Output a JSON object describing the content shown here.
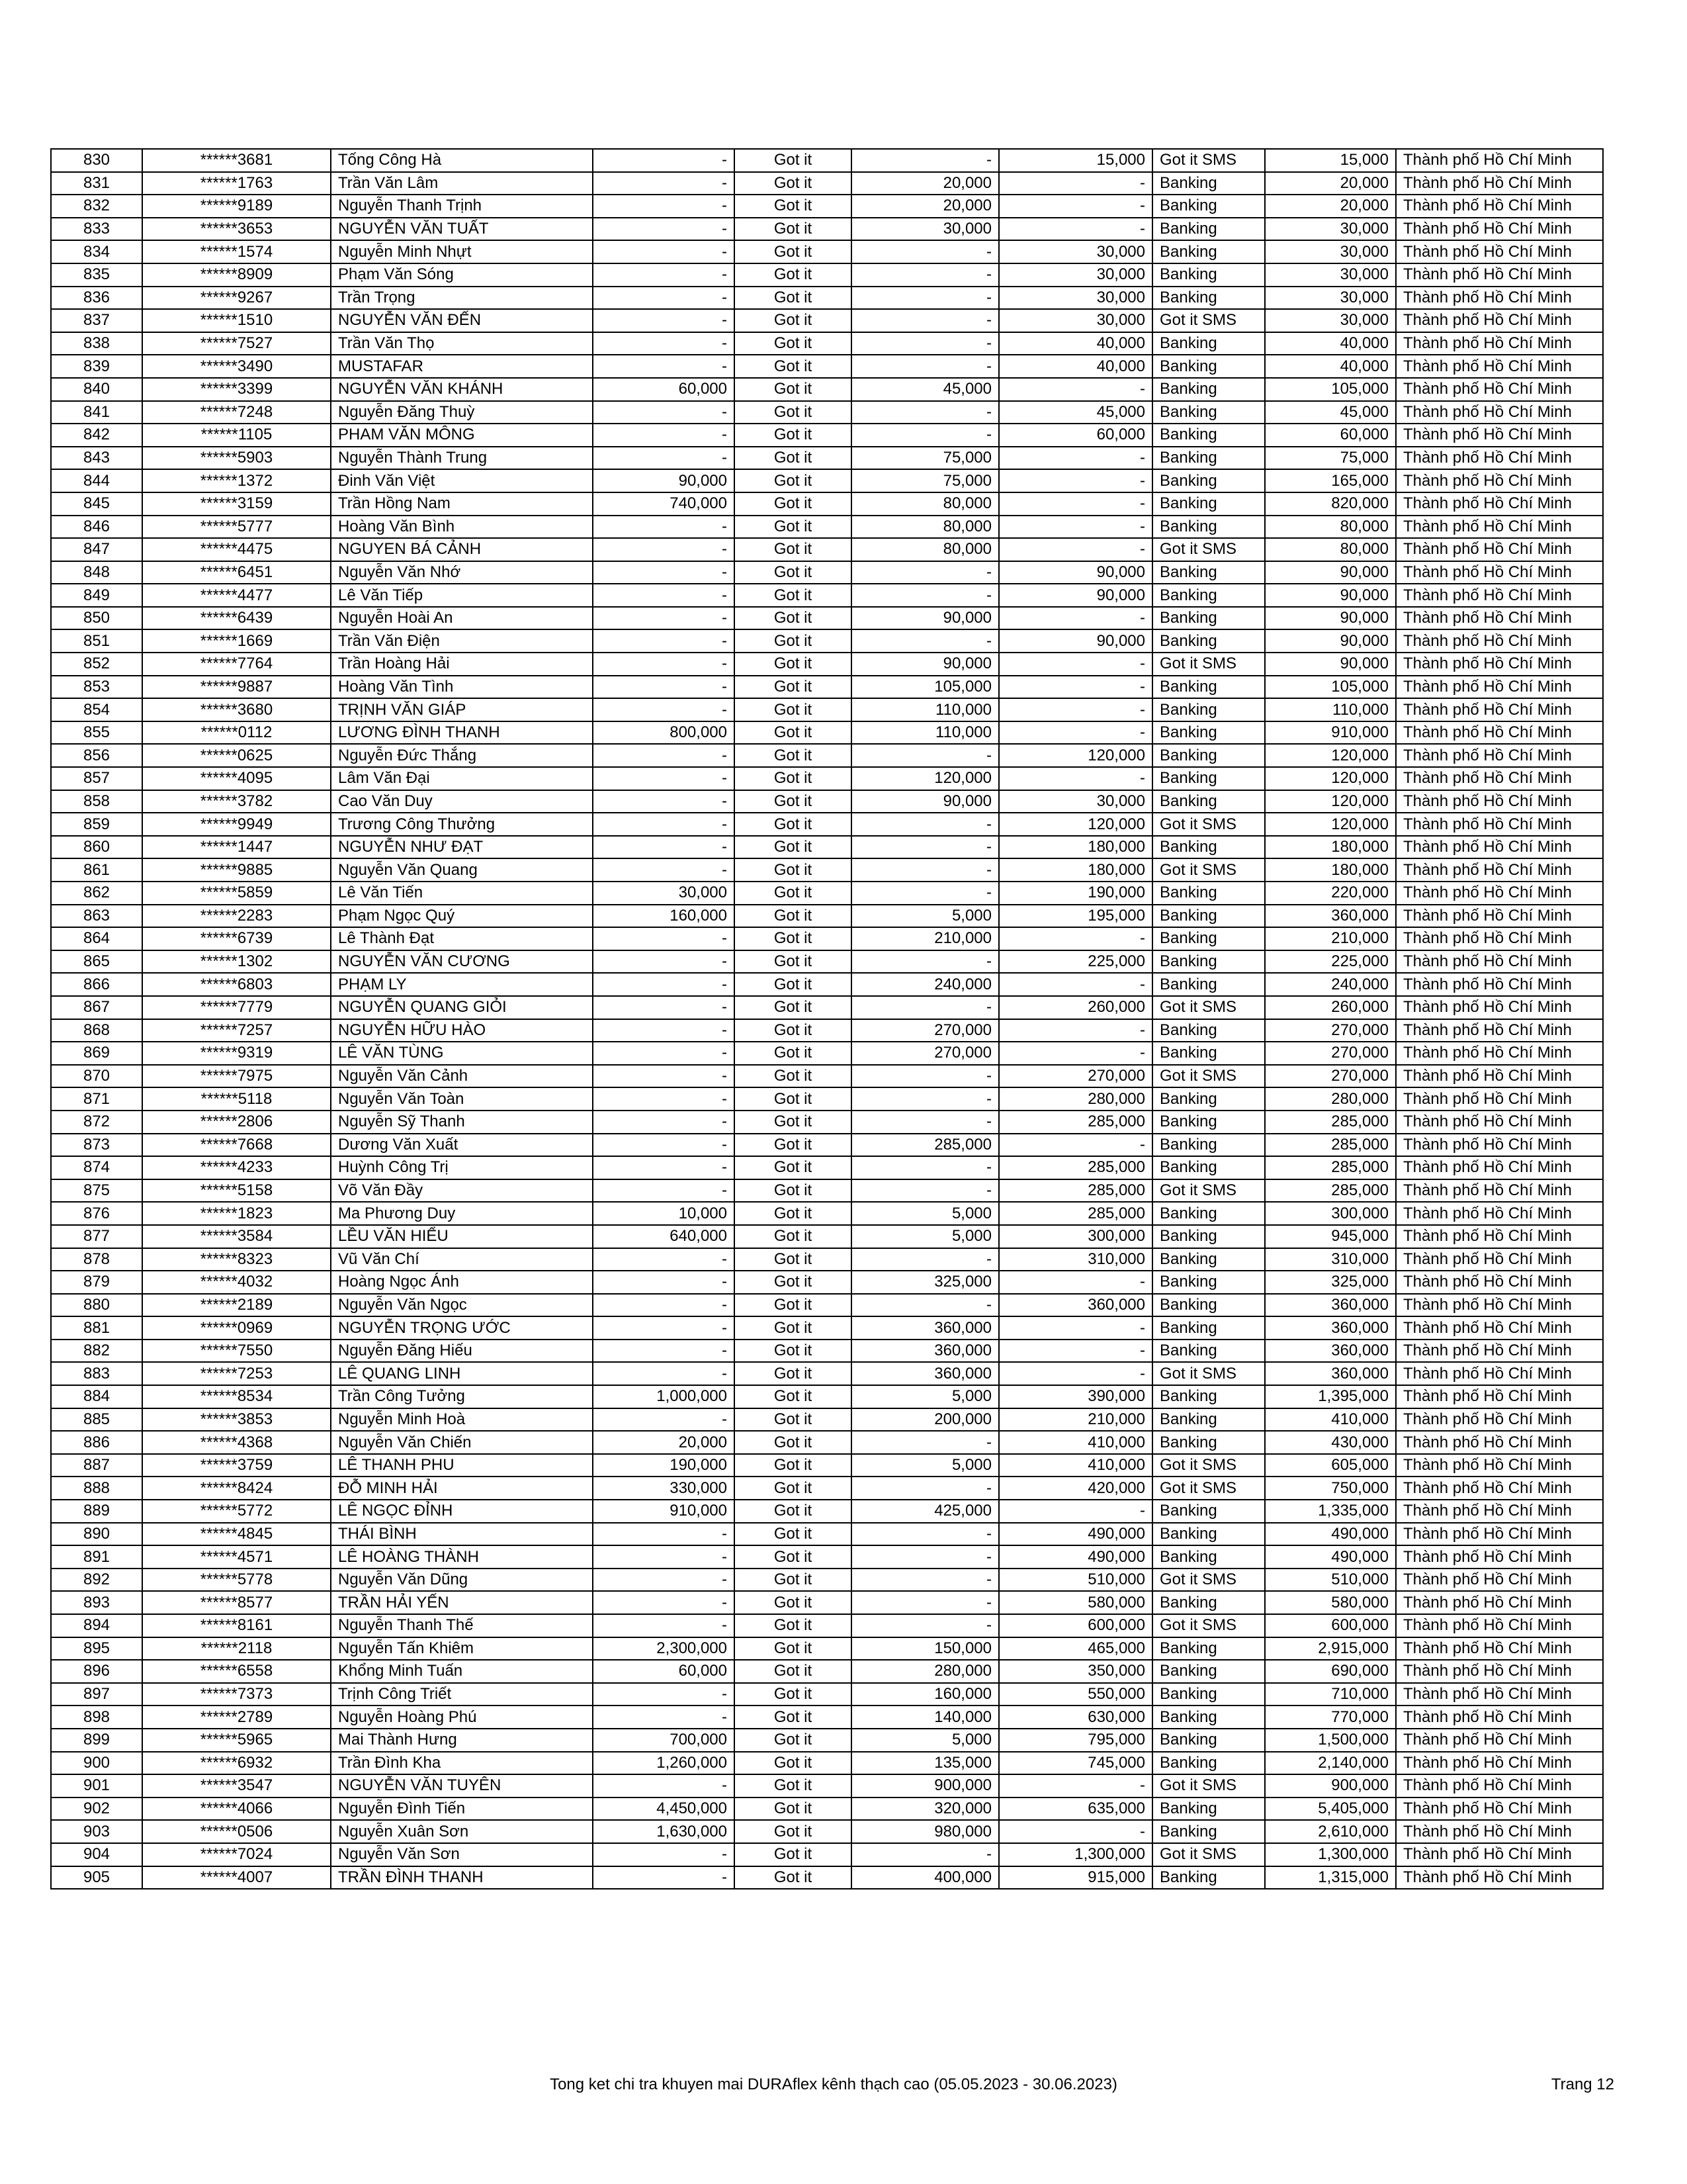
{
  "table": {
    "rows": [
      [
        "830",
        "******3681",
        "Tống Công Hà",
        "-",
        "Got it",
        "-",
        "15,000",
        "Got it SMS",
        "15,000",
        "Thành phố Hồ Chí Minh"
      ],
      [
        "831",
        "******1763",
        "Trần Văn Lâm",
        "-",
        "Got it",
        "20,000",
        "-",
        "Banking",
        "20,000",
        "Thành phố Hồ Chí Minh"
      ],
      [
        "832",
        "******9189",
        "Nguyễn Thanh Trịnh",
        "-",
        "Got it",
        "20,000",
        "-",
        "Banking",
        "20,000",
        "Thành phố Hồ Chí Minh"
      ],
      [
        "833",
        "******3653",
        "NGUYỄN VĂN TUẤT",
        "-",
        "Got it",
        "30,000",
        "-",
        "Banking",
        "30,000",
        "Thành phố Hồ Chí Minh"
      ],
      [
        "834",
        "******1574",
        "Nguyễn Minh Nhựt",
        "-",
        "Got it",
        "-",
        "30,000",
        "Banking",
        "30,000",
        "Thành phố Hồ Chí Minh"
      ],
      [
        "835",
        "******8909",
        "Phạm Văn Sóng",
        "-",
        "Got it",
        "-",
        "30,000",
        "Banking",
        "30,000",
        "Thành phố Hồ Chí Minh"
      ],
      [
        "836",
        "******9267",
        "Trần Trọng",
        "-",
        "Got it",
        "-",
        "30,000",
        "Banking",
        "30,000",
        "Thành phố Hồ Chí Minh"
      ],
      [
        "837",
        "******1510",
        "NGUYỄN VĂN ĐẾN",
        "-",
        "Got it",
        "-",
        "30,000",
        "Got it SMS",
        "30,000",
        "Thành phố Hồ Chí Minh"
      ],
      [
        "838",
        "******7527",
        "Trần Văn Thọ",
        "-",
        "Got it",
        "-",
        "40,000",
        "Banking",
        "40,000",
        "Thành phố Hồ Chí Minh"
      ],
      [
        "839",
        "******3490",
        "MUSTAFAR",
        "-",
        "Got it",
        "-",
        "40,000",
        "Banking",
        "40,000",
        "Thành phố Hồ Chí Minh"
      ],
      [
        "840",
        "******3399",
        "NGUYỄN VĂN KHÁNH",
        "60,000",
        "Got it",
        "45,000",
        "-",
        "Banking",
        "105,000",
        "Thành phố Hồ Chí Minh"
      ],
      [
        "841",
        "******7248",
        "Nguyễn Đăng Thuỳ",
        "-",
        "Got it",
        "-",
        "45,000",
        "Banking",
        "45,000",
        "Thành phố Hồ Chí Minh"
      ],
      [
        "842",
        "******1105",
        "PHAM VĂN MÔNG",
        "-",
        "Got it",
        "-",
        "60,000",
        "Banking",
        "60,000",
        "Thành phố Hồ Chí Minh"
      ],
      [
        "843",
        "******5903",
        "Nguyễn Thành Trung",
        "-",
        "Got it",
        "75,000",
        "-",
        "Banking",
        "75,000",
        "Thành phố Hồ Chí Minh"
      ],
      [
        "844",
        "******1372",
        "Đinh Văn Việt",
        "90,000",
        "Got it",
        "75,000",
        "-",
        "Banking",
        "165,000",
        "Thành phố Hồ Chí Minh"
      ],
      [
        "845",
        "******3159",
        "Trần Hồng Nam",
        "740,000",
        "Got it",
        "80,000",
        "-",
        "Banking",
        "820,000",
        "Thành phố Hồ Chí Minh"
      ],
      [
        "846",
        "******5777",
        "Hoàng Văn Bình",
        "-",
        "Got it",
        "80,000",
        "-",
        "Banking",
        "80,000",
        "Thành phố Hồ Chí Minh"
      ],
      [
        "847",
        "******4475",
        "NGUYEN BÁ CẢNH",
        "-",
        "Got it",
        "80,000",
        "-",
        "Got it SMS",
        "80,000",
        "Thành phố Hồ Chí Minh"
      ],
      [
        "848",
        "******6451",
        "Nguyễn Văn Nhớ",
        "-",
        "Got it",
        "-",
        "90,000",
        "Banking",
        "90,000",
        "Thành phố Hồ Chí Minh"
      ],
      [
        "849",
        "******4477",
        "Lê Văn Tiếp",
        "-",
        "Got it",
        "-",
        "90,000",
        "Banking",
        "90,000",
        "Thành phố Hồ Chí Minh"
      ],
      [
        "850",
        "******6439",
        "Nguyễn Hoài An",
        "-",
        "Got it",
        "90,000",
        "-",
        "Banking",
        "90,000",
        "Thành phố Hồ Chí Minh"
      ],
      [
        "851",
        "******1669",
        "Trần Văn Điện",
        "-",
        "Got it",
        "-",
        "90,000",
        "Banking",
        "90,000",
        "Thành phố Hồ Chí Minh"
      ],
      [
        "852",
        "******7764",
        "Trần  Hoàng Hải",
        "-",
        "Got it",
        "90,000",
        "-",
        "Got it SMS",
        "90,000",
        "Thành phố Hồ Chí Minh"
      ],
      [
        "853",
        "******9887",
        "Hoàng Văn Tình",
        "-",
        "Got it",
        "105,000",
        "-",
        "Banking",
        "105,000",
        "Thành phố Hồ Chí Minh"
      ],
      [
        "854",
        "******3680",
        "TRỊNH VĂN GIÁP",
        "-",
        "Got it",
        "110,000",
        "-",
        "Banking",
        "110,000",
        "Thành phố Hồ Chí Minh"
      ],
      [
        "855",
        "******0112",
        "LƯƠNG ĐÌNH THANH",
        "800,000",
        "Got it",
        "110,000",
        "-",
        "Banking",
        "910,000",
        "Thành phố Hồ Chí Minh"
      ],
      [
        "856",
        "******0625",
        "Nguyễn Đức Thắng",
        "-",
        "Got it",
        "-",
        "120,000",
        "Banking",
        "120,000",
        "Thành phố Hồ Chí Minh"
      ],
      [
        "857",
        "******4095",
        "Lâm Văn Đại",
        "-",
        "Got it",
        "120,000",
        "-",
        "Banking",
        "120,000",
        "Thành phố Hồ Chí Minh"
      ],
      [
        "858",
        "******3782",
        "Cao Văn Duy",
        "-",
        "Got it",
        "90,000",
        "30,000",
        "Banking",
        "120,000",
        "Thành phố Hồ Chí Minh"
      ],
      [
        "859",
        "******9949",
        "Trương Công Thưởng",
        "-",
        "Got it",
        "-",
        "120,000",
        "Got it SMS",
        "120,000",
        "Thành phố Hồ Chí Minh"
      ],
      [
        "860",
        "******1447",
        "NGUYỄN NHƯ ĐẠT",
        "-",
        "Got it",
        "-",
        "180,000",
        "Banking",
        "180,000",
        "Thành phố Hồ Chí Minh"
      ],
      [
        "861",
        "******9885",
        "Nguyễn Văn Quang",
        "-",
        "Got it",
        "-",
        "180,000",
        "Got it SMS",
        "180,000",
        "Thành phố Hồ Chí Minh"
      ],
      [
        "862",
        "******5859",
        "Lê Văn Tiến",
        "30,000",
        "Got it",
        "-",
        "190,000",
        "Banking",
        "220,000",
        "Thành phố Hồ Chí Minh"
      ],
      [
        "863",
        "******2283",
        "Phạm Ngọc Quý",
        "160,000",
        "Got it",
        "5,000",
        "195,000",
        "Banking",
        "360,000",
        "Thành phố Hồ Chí Minh"
      ],
      [
        "864",
        "******6739",
        "Lê Thành Đạt",
        "-",
        "Got it",
        "210,000",
        "-",
        "Banking",
        "210,000",
        "Thành phố Hồ Chí Minh"
      ],
      [
        "865",
        "******1302",
        "NGUYỄN VĂN CƯƠNG",
        "-",
        "Got it",
        "-",
        "225,000",
        "Banking",
        "225,000",
        "Thành phố Hồ Chí Minh"
      ],
      [
        "866",
        "******6803",
        "PHẠM LY",
        "-",
        "Got it",
        "240,000",
        "-",
        "Banking",
        "240,000",
        "Thành phố Hồ Chí Minh"
      ],
      [
        "867",
        "******7779",
        "NGUYỄN QUANG GIỎI",
        "-",
        "Got it",
        "-",
        "260,000",
        "Got it SMS",
        "260,000",
        "Thành phố Hồ Chí Minh"
      ],
      [
        "868",
        "******7257",
        "NGUYỄN HỮU HÀO",
        "-",
        "Got it",
        "270,000",
        "-",
        "Banking",
        "270,000",
        "Thành phố Hồ Chí Minh"
      ],
      [
        "869",
        "******9319",
        "LÊ VĂN TÙNG",
        "-",
        "Got it",
        "270,000",
        "-",
        "Banking",
        "270,000",
        "Thành phố Hồ Chí Minh"
      ],
      [
        "870",
        "******7975",
        "Nguyễn Văn Cảnh",
        "-",
        "Got it",
        "-",
        "270,000",
        "Got it SMS",
        "270,000",
        "Thành phố Hồ Chí Minh"
      ],
      [
        "871",
        "******5118",
        "Nguyễn Văn Toàn",
        "-",
        "Got it",
        "-",
        "280,000",
        "Banking",
        "280,000",
        "Thành phố Hồ Chí Minh"
      ],
      [
        "872",
        "******2806",
        "Nguyễn Sỹ Thanh",
        "-",
        "Got it",
        "-",
        "285,000",
        "Banking",
        "285,000",
        "Thành phố Hồ Chí Minh"
      ],
      [
        "873",
        "******7668",
        "Dương Văn Xuất",
        "-",
        "Got it",
        "285,000",
        "-",
        "Banking",
        "285,000",
        "Thành phố Hồ Chí Minh"
      ],
      [
        "874",
        "******4233",
        "Huỳnh Công Trị",
        "-",
        "Got it",
        "-",
        "285,000",
        "Banking",
        "285,000",
        "Thành phố Hồ Chí Minh"
      ],
      [
        "875",
        "******5158",
        "Võ Văn Đầy",
        "-",
        "Got it",
        "-",
        "285,000",
        "Got it SMS",
        "285,000",
        "Thành phố Hồ Chí Minh"
      ],
      [
        "876",
        "******1823",
        "Ma Phương Duy",
        "10,000",
        "Got it",
        "5,000",
        "285,000",
        "Banking",
        "300,000",
        "Thành phố Hồ Chí Minh"
      ],
      [
        "877",
        "******3584",
        "LỀU VĂN HIỂU",
        "640,000",
        "Got it",
        "5,000",
        "300,000",
        "Banking",
        "945,000",
        "Thành phố Hồ Chí Minh"
      ],
      [
        "878",
        "******8323",
        "Vũ Văn Chí",
        "-",
        "Got it",
        "-",
        "310,000",
        "Banking",
        "310,000",
        "Thành phố Hồ Chí Minh"
      ],
      [
        "879",
        "******4032",
        "Hoàng Ngọc Ánh",
        "-",
        "Got it",
        "325,000",
        "-",
        "Banking",
        "325,000",
        "Thành phố Hồ Chí Minh"
      ],
      [
        "880",
        "******2189",
        "Nguyễn Văn Ngọc",
        "-",
        "Got it",
        "-",
        "360,000",
        "Banking",
        "360,000",
        "Thành phố Hồ Chí Minh"
      ],
      [
        "881",
        "******0969",
        "NGUYỄN TRỌNG ƯỚC",
        "-",
        "Got it",
        "360,000",
        "-",
        "Banking",
        "360,000",
        "Thành phố Hồ Chí Minh"
      ],
      [
        "882",
        "******7550",
        "Nguyễn Đăng Hiếu",
        "-",
        "Got it",
        "360,000",
        "-",
        "Banking",
        "360,000",
        "Thành phố Hồ Chí Minh"
      ],
      [
        "883",
        "******7253",
        "LÊ QUANG LINH",
        "-",
        "Got it",
        "360,000",
        "-",
        "Got it SMS",
        "360,000",
        "Thành phố Hồ Chí Minh"
      ],
      [
        "884",
        "******8534",
        "Trần Công Tưởng",
        "1,000,000",
        "Got it",
        "5,000",
        "390,000",
        "Banking",
        "1,395,000",
        "Thành phố Hồ Chí Minh"
      ],
      [
        "885",
        "******3853",
        "Nguyễn Minh Hoà",
        "-",
        "Got it",
        "200,000",
        "210,000",
        "Banking",
        "410,000",
        "Thành phố Hồ Chí Minh"
      ],
      [
        "886",
        "******4368",
        "Nguyễn Văn Chiến",
        "20,000",
        "Got it",
        "-",
        "410,000",
        "Banking",
        "430,000",
        "Thành phố Hồ Chí Minh"
      ],
      [
        "887",
        "******3759",
        "LÊ THANH PHU",
        "190,000",
        "Got it",
        "5,000",
        "410,000",
        "Got it SMS",
        "605,000",
        "Thành phố Hồ Chí Minh"
      ],
      [
        "888",
        "******8424",
        "ĐỖ MINH HẢI",
        "330,000",
        "Got it",
        "-",
        "420,000",
        "Got it SMS",
        "750,000",
        "Thành phố Hồ Chí Minh"
      ],
      [
        "889",
        "******5772",
        "LÊ NGỌC ĐỈNH",
        "910,000",
        "Got it",
        "425,000",
        "-",
        "Banking",
        "1,335,000",
        "Thành phố Hồ Chí Minh"
      ],
      [
        "890",
        "******4845",
        "THÁI BÌNH",
        "-",
        "Got it",
        "-",
        "490,000",
        "Banking",
        "490,000",
        "Thành phố Hồ Chí Minh"
      ],
      [
        "891",
        "******4571",
        "LÊ HOÀNG THÀNH",
        "-",
        "Got it",
        "-",
        "490,000",
        "Banking",
        "490,000",
        "Thành phố Hồ Chí Minh"
      ],
      [
        "892",
        "******5778",
        "Nguyễn Văn Dũng",
        "-",
        "Got it",
        "-",
        "510,000",
        "Got it SMS",
        "510,000",
        "Thành phố Hồ Chí Minh"
      ],
      [
        "893",
        "******8577",
        "TRẦN HẢI YẾN",
        "-",
        "Got it",
        "-",
        "580,000",
        "Banking",
        "580,000",
        "Thành phố Hồ Chí Minh"
      ],
      [
        "894",
        "******8161",
        "Nguyễn  Thanh Thế",
        "-",
        "Got it",
        "-",
        "600,000",
        "Got it SMS",
        "600,000",
        "Thành phố Hồ Chí Minh"
      ],
      [
        "895",
        "******2118",
        "Nguyễn Tấn Khiêm",
        "2,300,000",
        "Got it",
        "150,000",
        "465,000",
        "Banking",
        "2,915,000",
        "Thành phố Hồ Chí Minh"
      ],
      [
        "896",
        "******6558",
        "Khổng Minh Tuấn",
        "60,000",
        "Got it",
        "280,000",
        "350,000",
        "Banking",
        "690,000",
        "Thành phố Hồ Chí Minh"
      ],
      [
        "897",
        "******7373",
        "Trịnh Công Triết",
        "-",
        "Got it",
        "160,000",
        "550,000",
        "Banking",
        "710,000",
        "Thành phố Hồ Chí Minh"
      ],
      [
        "898",
        "******2789",
        "Nguyễn Hoàng Phú",
        "-",
        "Got it",
        "140,000",
        "630,000",
        "Banking",
        "770,000",
        "Thành phố Hồ Chí Minh"
      ],
      [
        "899",
        "******5965",
        "Mai Thành Hưng",
        "700,000",
        "Got it",
        "5,000",
        "795,000",
        "Banking",
        "1,500,000",
        "Thành phố Hồ Chí Minh"
      ],
      [
        "900",
        "******6932",
        "Trần Đình Kha",
        "1,260,000",
        "Got it",
        "135,000",
        "745,000",
        "Banking",
        "2,140,000",
        "Thành phố Hồ Chí Minh"
      ],
      [
        "901",
        "******3547",
        "NGUYỄN VĂN TUYÊN",
        "-",
        "Got it",
        "900,000",
        "-",
        "Got it SMS",
        "900,000",
        "Thành phố Hồ Chí Minh"
      ],
      [
        "902",
        "******4066",
        "Nguyễn Đình Tiến",
        "4,450,000",
        "Got it",
        "320,000",
        "635,000",
        "Banking",
        "5,405,000",
        "Thành phố Hồ Chí Minh"
      ],
      [
        "903",
        "******0506",
        "Nguyễn Xuân Sơn",
        "1,630,000",
        "Got it",
        "980,000",
        "-",
        "Banking",
        "2,610,000",
        "Thành phố Hồ Chí Minh"
      ],
      [
        "904",
        "******7024",
        "Nguyễn Văn Sơn",
        "-",
        "Got it",
        "-",
        "1,300,000",
        "Got it SMS",
        "1,300,000",
        "Thành phố Hồ Chí Minh"
      ],
      [
        "905",
        "******4007",
        "TRẦN ĐÌNH THANH",
        "-",
        "Got it",
        "400,000",
        "915,000",
        "Banking",
        "1,315,000",
        "Thành phố Hồ Chí Minh"
      ]
    ]
  },
  "footer": {
    "title": "Tong ket chi tra khuyen mai DURAflex kênh thạch cao (05.05.2023 - 30.06.2023)",
    "page": "Trang 12"
  }
}
